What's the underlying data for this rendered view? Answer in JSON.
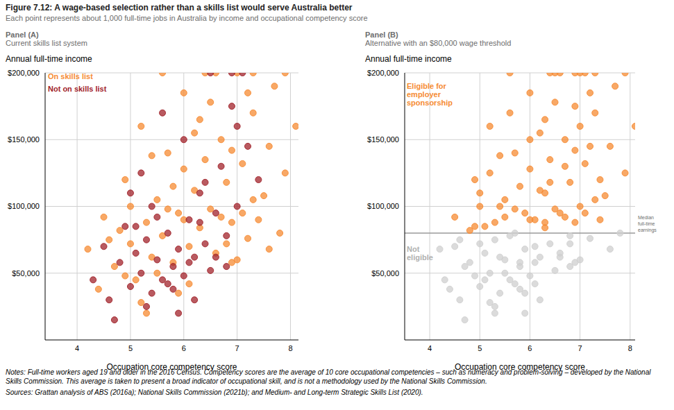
{
  "title": "Figure 7.12: A wage-based selection rather than a skills list would serve Australia better",
  "subtitle": "Each point represents about 1,000 full-time jobs in Australia by income and occupational competency score",
  "notes": "Notes: Full-time workers aged 19 and older in the 2016 Census. Competency scores are the average of 10 core occupational competencies – such as numeracy and problem-solving – developed by the National Skills Commission. This average is taken to present a broad indicator of occupational skill, and is not a methodology used by the National Skills Commission.",
  "sources": "Sources: Grattan analysis of ABS (2016a); National Skills Commission (2021b); and Medium- and Long-term Strategic Skills List (2020).",
  "chart_data": [
    {
      "type": "scatter",
      "title": "Panel (A)",
      "subtitle": "Current skills list system",
      "y_label": "Annual full-time income",
      "x_label": "Occupation core competency score",
      "xlim": [
        3.4,
        8.15
      ],
      "xticks": [
        4,
        5,
        6,
        7,
        8
      ],
      "ylim": [
        0,
        200000
      ],
      "yticks": [
        {
          "value": 50000,
          "label": "$50,000"
        },
        {
          "value": 100000,
          "label": "$100,000"
        },
        {
          "value": 150000,
          "label": "$150,000"
        },
        {
          "value": 200000,
          "label": "$200,000"
        }
      ],
      "grid": true,
      "series": [
        {
          "name": "On skills list",
          "color": "#f68b33",
          "x": [
            4.2,
            4.5,
            4.7,
            4.9,
            5.0,
            5.1,
            5.2,
            5.3,
            5.4,
            5.5,
            5.6,
            5.7,
            5.8,
            5.9,
            6.0,
            6.1,
            6.2,
            6.3,
            6.4,
            6.5,
            6.6,
            6.7,
            6.8,
            6.9,
            7.0,
            7.1,
            7.2,
            7.3,
            7.5,
            7.7,
            7.9,
            8.1,
            4.4,
            4.8,
            5.2,
            5.5,
            5.8,
            6.1,
            6.4,
            6.7,
            7.0,
            7.3,
            7.6,
            7.9,
            5.0,
            5.4,
            5.9,
            6.3,
            6.6,
            6.9,
            7.2,
            7.4,
            7.8,
            4.6,
            5.3,
            5.7,
            6.0,
            6.5,
            6.8,
            7.1,
            5.6,
            6.2,
            6.9,
            7.6,
            4.9,
            6.0,
            7.3
          ],
          "values": [
            68000,
            92000,
            55000,
            120000,
            72000,
            45000,
            160000,
            88000,
            62000,
            105000,
            78000,
            140000,
            58000,
            95000,
            185000,
            70000,
            112000,
            84000,
            200000,
            98000,
            65000,
            150000,
            118000,
            88000,
            200000,
            132000,
            76000,
            170000,
            108000,
            190000,
            125000,
            160000,
            38000,
            82000,
            28000,
            50000,
            115000,
            42000,
            135000,
            92000,
            60000,
            105000,
            145000,
            200000,
            100000,
            138000,
            35000,
            165000,
            200000,
            58000,
            185000,
            90000,
            80000,
            75000,
            20000,
            98000,
            128000,
            178000,
            72000,
            95000,
            200000,
            155000,
            142000,
            68000,
            48000,
            90000,
            200000
          ]
        },
        {
          "name": "Not on skills list",
          "color": "#a1232b",
          "x": [
            4.3,
            4.5,
            4.6,
            4.8,
            4.9,
            5.0,
            5.1,
            5.2,
            5.3,
            5.4,
            5.5,
            5.6,
            5.7,
            5.8,
            5.9,
            6.0,
            6.1,
            6.2,
            6.3,
            6.4,
            6.5,
            6.6,
            6.7,
            6.8,
            6.9,
            7.0,
            7.2,
            7.4,
            4.7,
            5.0,
            5.3,
            5.5,
            5.8,
            6.0,
            6.2,
            6.5,
            6.8,
            7.1,
            5.2,
            5.6,
            5.9,
            6.3,
            6.6,
            7.0,
            5.4,
            5.7,
            6.1,
            6.4,
            5.1,
            6.9
          ],
          "values": [
            45000,
            70000,
            30000,
            58000,
            85000,
            40000,
            65000,
            50000,
            75000,
            35000,
            60000,
            45000,
            80000,
            55000,
            68000,
            48000,
            90000,
            62000,
            110000,
            72000,
            52000,
            95000,
            130000,
            78000,
            175000,
            100000,
            145000,
            120000,
            15000,
            110000,
            25000,
            92000,
            38000,
            150000,
            30000,
            200000,
            55000,
            200000,
            125000,
            170000,
            20000,
            88000,
            62000,
            160000,
            100000,
            42000,
            58000,
            118000,
            85000,
            200000
          ]
        }
      ]
    },
    {
      "type": "scatter",
      "title": "Panel (B)",
      "subtitle": "Alternative with an $80,000 wage threshold",
      "y_label": "Annual full-time income",
      "x_label": "Occupation core competency score",
      "xlim": [
        3.5,
        8.1
      ],
      "xticks": [
        4,
        5,
        6,
        7,
        8
      ],
      "ylim": [
        0,
        200000
      ],
      "yticks": [
        {
          "value": 50000,
          "label": "$50,000"
        },
        {
          "value": 100000,
          "label": "$100,000"
        },
        {
          "value": 150000,
          "label": "$150,000"
        },
        {
          "value": 200000,
          "label": "$200,000"
        }
      ],
      "grid": true,
      "reference_line": {
        "value": 80000,
        "label": "Median full-time earnings"
      },
      "series": [
        {
          "name": "Eligible for employer sponsorship",
          "color": "#f68b33",
          "x": [
            4.5,
            4.9,
            5.2,
            5.3,
            5.5,
            5.7,
            5.9,
            6.0,
            6.2,
            6.3,
            6.4,
            6.5,
            6.7,
            6.8,
            6.9,
            7.0,
            7.1,
            7.3,
            7.5,
            7.7,
            7.9,
            8.1,
            4.8,
            5.8,
            6.4,
            6.7,
            7.3,
            7.6,
            7.9,
            5.0,
            5.4,
            6.3,
            6.6,
            7.2,
            7.4,
            5.7,
            6.0,
            6.5,
            7.1,
            5.6,
            6.2,
            6.9,
            6.0,
            7.3,
            4.9,
            6.1,
            6.3,
            6.6,
            6.7,
            6.9,
            7.0,
            7.2,
            7.4,
            5.0,
            5.5,
            6.0,
            6.5,
            7.1,
            5.2,
            5.6,
            6.3,
            7.0,
            5.4,
            6.4,
            5.1,
            6.9
          ],
          "values": [
            92000,
            120000,
            160000,
            88000,
            105000,
            140000,
            95000,
            185000,
            112000,
            84000,
            200000,
            98000,
            150000,
            118000,
            88000,
            200000,
            132000,
            170000,
            108000,
            190000,
            125000,
            160000,
            82000,
            115000,
            135000,
            92000,
            105000,
            145000,
            200000,
            100000,
            138000,
            165000,
            200000,
            185000,
            90000,
            98000,
            128000,
            178000,
            95000,
            200000,
            155000,
            142000,
            90000,
            200000,
            85000,
            90000,
            110000,
            95000,
            130000,
            175000,
            100000,
            145000,
            120000,
            110000,
            92000,
            150000,
            200000,
            200000,
            125000,
            170000,
            88000,
            160000,
            100000,
            118000,
            85000,
            200000
          ]
        },
        {
          "name": "Not eligible",
          "color": "#cfcfcf",
          "x": [
            4.2,
            4.7,
            5.0,
            5.1,
            5.4,
            5.6,
            5.8,
            6.1,
            6.6,
            7.2,
            4.4,
            5.2,
            5.5,
            6.1,
            7.0,
            5.9,
            6.9,
            7.8,
            4.6,
            5.3,
            6.8,
            7.6,
            4.9,
            4.3,
            4.5,
            4.6,
            4.8,
            5.0,
            5.1,
            5.2,
            5.3,
            5.4,
            5.5,
            5.6,
            5.7,
            5.8,
            5.9,
            6.0,
            6.2,
            6.4,
            6.5,
            6.8,
            4.7,
            5.3,
            5.8,
            6.2,
            6.8,
            5.9,
            6.6,
            5.7,
            6.1
          ],
          "values": [
            68000,
            55000,
            72000,
            45000,
            62000,
            78000,
            58000,
            70000,
            65000,
            76000,
            38000,
            28000,
            50000,
            42000,
            60000,
            35000,
            58000,
            80000,
            75000,
            20000,
            72000,
            68000,
            48000,
            45000,
            70000,
            30000,
            58000,
            40000,
            65000,
            50000,
            75000,
            35000,
            60000,
            45000,
            80000,
            55000,
            68000,
            48000,
            62000,
            72000,
            52000,
            78000,
            15000,
            25000,
            38000,
            30000,
            55000,
            20000,
            62000,
            42000,
            58000
          ]
        }
      ]
    }
  ]
}
